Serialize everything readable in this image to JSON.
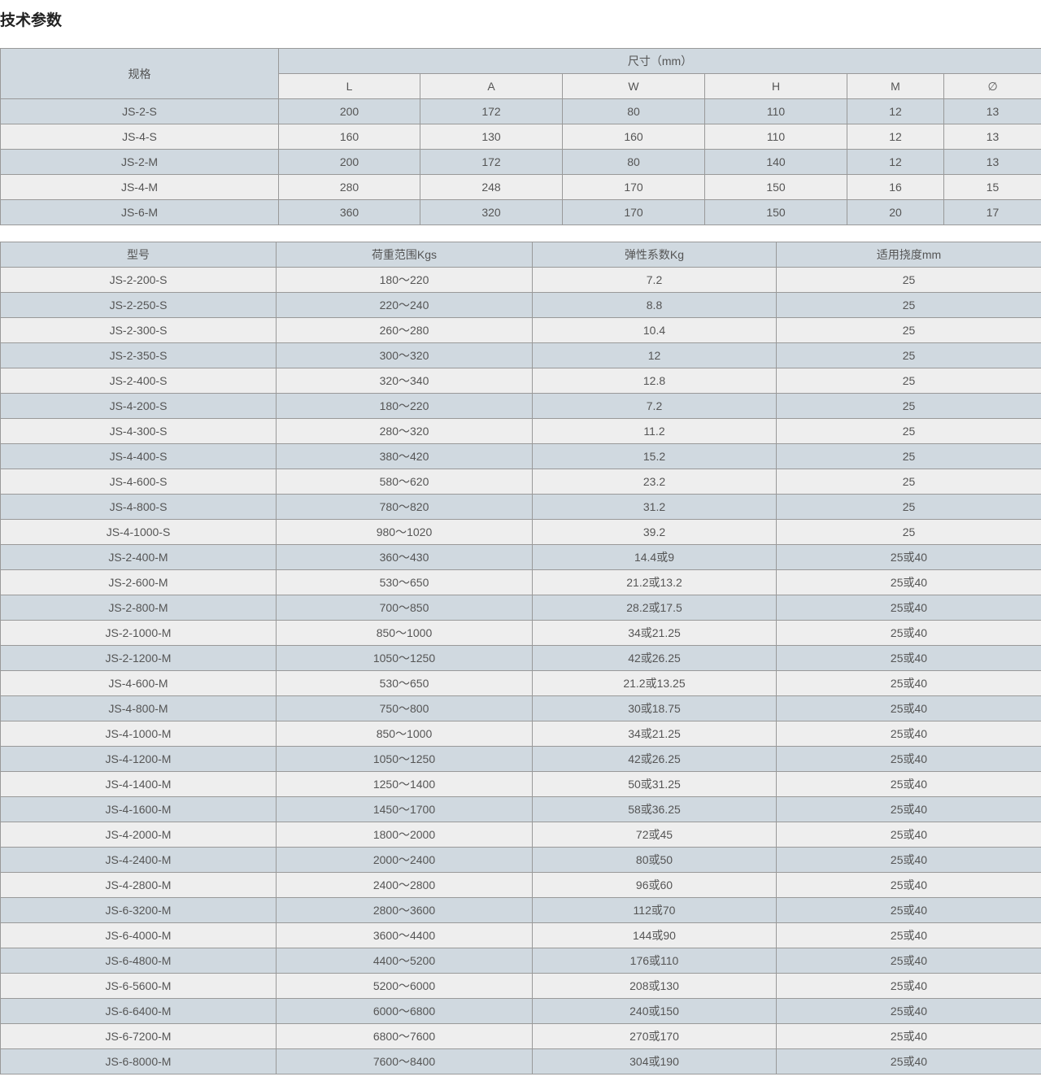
{
  "title": "技术参数",
  "spec_table": {
    "header_spec": "规格",
    "header_dims": "尺寸（mm）",
    "columns": [
      "L",
      "A",
      "W",
      "H",
      "M",
      "∅"
    ],
    "rows": [
      [
        "JS-2-S",
        "200",
        "172",
        "80",
        "110",
        "12",
        "13"
      ],
      [
        "JS-4-S",
        "160",
        "130",
        "160",
        "110",
        "12",
        "13"
      ],
      [
        "JS-2-M",
        "200",
        "172",
        "80",
        "140",
        "12",
        "13"
      ],
      [
        "JS-4-M",
        "280",
        "248",
        "170",
        "150",
        "16",
        "15"
      ],
      [
        "JS-6-M",
        "360",
        "320",
        "170",
        "150",
        "20",
        "17"
      ]
    ]
  },
  "model_table": {
    "columns": [
      "型号",
      "荷重范围Kgs",
      "弹性系数Kg",
      "适用挠度mm"
    ],
    "rows": [
      [
        "JS-2-200-S",
        "180～220",
        "7.2",
        "25"
      ],
      [
        "JS-2-250-S",
        "220～240",
        "8.8",
        "25"
      ],
      [
        "JS-2-300-S",
        "260～280",
        "10.4",
        "25"
      ],
      [
        "JS-2-350-S",
        "300～320",
        "12",
        "25"
      ],
      [
        "JS-2-400-S",
        "320～340",
        "12.8",
        "25"
      ],
      [
        "JS-4-200-S",
        "180～220",
        "7.2",
        "25"
      ],
      [
        "JS-4-300-S",
        "280～320",
        "11.2",
        "25"
      ],
      [
        "JS-4-400-S",
        "380～420",
        "15.2",
        "25"
      ],
      [
        "JS-4-600-S",
        "580～620",
        "23.2",
        "25"
      ],
      [
        "JS-4-800-S",
        "780～820",
        "31.2",
        "25"
      ],
      [
        "JS-4-1000-S",
        "980～1020",
        "39.2",
        "25"
      ],
      [
        "JS-2-400-M",
        "360～430",
        "14.4或9",
        "25或40"
      ],
      [
        "JS-2-600-M",
        "530～650",
        "21.2或13.2",
        "25或40"
      ],
      [
        "JS-2-800-M",
        "700～850",
        "28.2或17.5",
        "25或40"
      ],
      [
        "JS-2-1000-M",
        "850～1000",
        "34或21.25",
        "25或40"
      ],
      [
        "JS-2-1200-M",
        "1050～1250",
        "42或26.25",
        "25或40"
      ],
      [
        "JS-4-600-M",
        "530～650",
        "21.2或13.25",
        "25或40"
      ],
      [
        "JS-4-800-M",
        "750～800",
        "30或18.75",
        "25或40"
      ],
      [
        "JS-4-1000-M",
        "850～1000",
        "34或21.25",
        "25或40"
      ],
      [
        "JS-4-1200-M",
        "1050～1250",
        "42或26.25",
        "25或40"
      ],
      [
        "JS-4-1400-M",
        "1250～1400",
        "50或31.25",
        "25或40"
      ],
      [
        "JS-4-1600-M",
        "1450～1700",
        "58或36.25",
        "25或40"
      ],
      [
        "JS-4-2000-M",
        "1800～2000",
        "72或45",
        "25或40"
      ],
      [
        "JS-4-2400-M",
        "2000～2400",
        "80或50",
        "25或40"
      ],
      [
        "JS-4-2800-M",
        "2400～2800",
        "96或60",
        "25或40"
      ],
      [
        "JS-6-3200-M",
        "2800～3600",
        "112或70",
        "25或40"
      ],
      [
        "JS-6-4000-M",
        "3600～4400",
        "144或90",
        "25或40"
      ],
      [
        "JS-6-4800-M",
        "4400～5200",
        "176或110",
        "25或40"
      ],
      [
        "JS-6-5600-M",
        "5200～6000",
        "208或130",
        "25或40"
      ],
      [
        "JS-6-6400-M",
        "6000～6800",
        "240或150",
        "25或40"
      ],
      [
        "JS-6-7200-M",
        "6800～7600",
        "270或170",
        "25或40"
      ],
      [
        "JS-6-8000-M",
        "7600～8400",
        "304或190",
        "25或40"
      ]
    ]
  },
  "colors": {
    "header_bg": "#d0d9e0",
    "alt_bg": "#eeeeee",
    "border": "#999999"
  }
}
